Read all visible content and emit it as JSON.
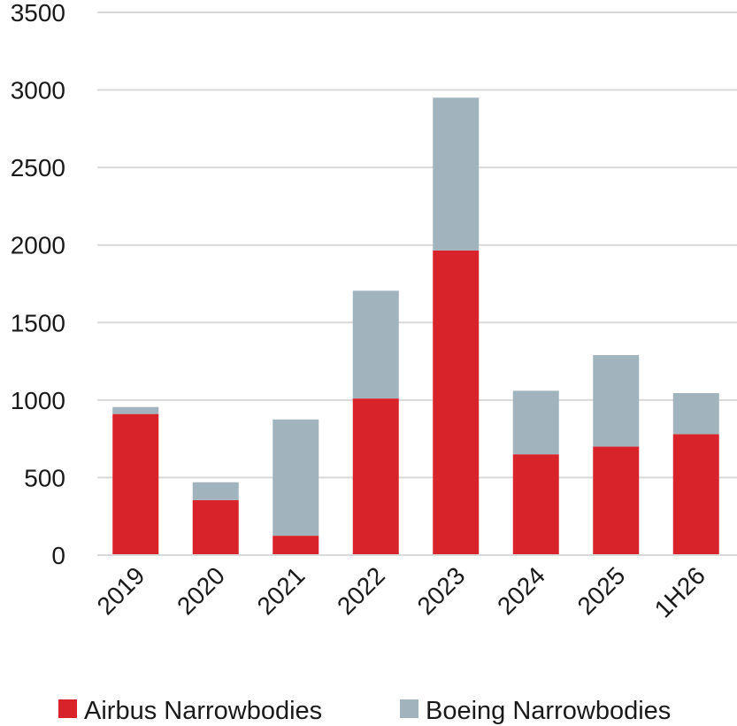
{
  "chart_data": {
    "type": "bar",
    "stacked": true,
    "title": "",
    "xlabel": "",
    "ylabel": "",
    "categories": [
      "2019",
      "2020",
      "2021",
      "2022",
      "2023",
      "2024",
      "2025",
      "1H26"
    ],
    "series": [
      {
        "name": "Airbus Narrowbodies",
        "color": "#d9232a",
        "values": [
          910,
          355,
          125,
          1010,
          1965,
          650,
          700,
          780
        ]
      },
      {
        "name": "Boeing Narrowbodies",
        "color": "#a1b4be",
        "values": [
          45,
          115,
          750,
          695,
          985,
          410,
          590,
          265
        ]
      }
    ],
    "ylim": [
      0,
      3500
    ],
    "yticks": [
      "0",
      "500",
      "1000",
      "1500",
      "2000",
      "2500",
      "3000",
      "3500"
    ],
    "grid": true,
    "legend_position": "bottom"
  }
}
